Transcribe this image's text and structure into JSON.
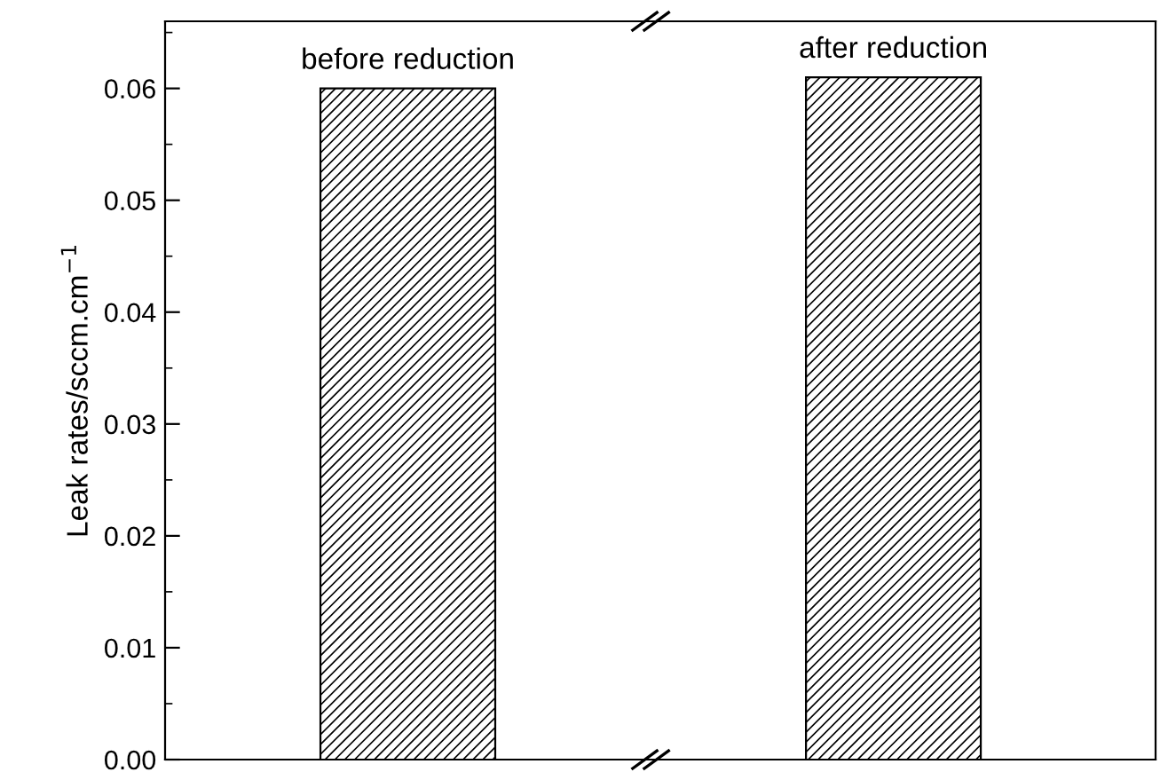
{
  "chart_data": {
    "type": "bar",
    "categories": [
      "before reduction",
      "after reduction"
    ],
    "values": [
      0.06,
      0.061
    ],
    "color": "#000000",
    "ylabel": "Leak rates/sccm.cm$^{−1}$",
    "ylim": [
      0,
      0.066
    ],
    "yticks": [
      {
        "value": 0,
        "label": "0.00"
      },
      {
        "value": 0.01,
        "label": "0.01"
      },
      {
        "value": 0.02,
        "label": "0.02"
      },
      {
        "value": 0.03,
        "label": "0.03"
      },
      {
        "value": 0.04,
        "label": "0.04"
      },
      {
        "value": 0.05,
        "label": "0.05"
      },
      {
        "value": 0.06,
        "label": "0.06"
      }
    ],
    "grid": false,
    "legend": false
  }
}
